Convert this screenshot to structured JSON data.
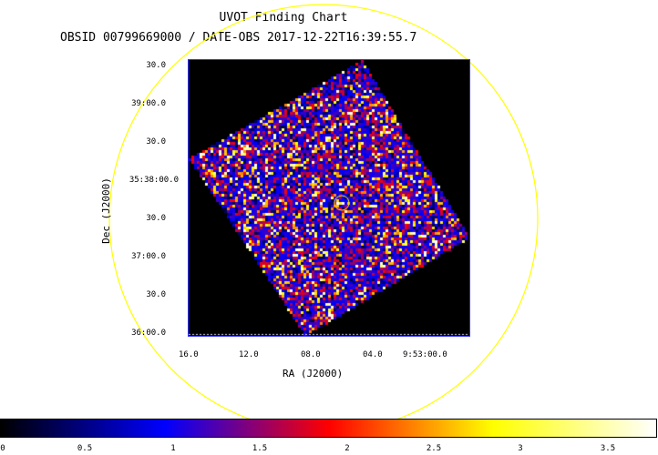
{
  "chart_data": {
    "type": "heatmap",
    "title": "UVOT Finding Chart",
    "subtitle": "OBSID 00799669000 / DATE-OBS 2017-12-22T16:39:55.7",
    "xlabel": "RA (J2000)",
    "ylabel": "Dec (J2000)",
    "x_ticks": [
      "16.0",
      "12.0",
      "08.0",
      "04.0",
      "9:53:00.0"
    ],
    "y_ticks": [
      "30.0",
      "39:00.0",
      "30.0",
      "35:38:00.0",
      "30.0",
      "37:00.0",
      "30.0",
      "36:00.0"
    ],
    "colorbar": {
      "range": [
        0,
        3.7
      ],
      "ticks": [
        "0",
        "0.5",
        "1",
        "1.5",
        "2",
        "2.5",
        "3",
        "3.5"
      ],
      "colormap": [
        "#000000",
        "#0000ff",
        "#ff0000",
        "#ffff00",
        "#ffffff"
      ]
    },
    "colors": {
      "circle": "#ffff00",
      "frame": "#2f2fff",
      "background": "#000000"
    }
  }
}
